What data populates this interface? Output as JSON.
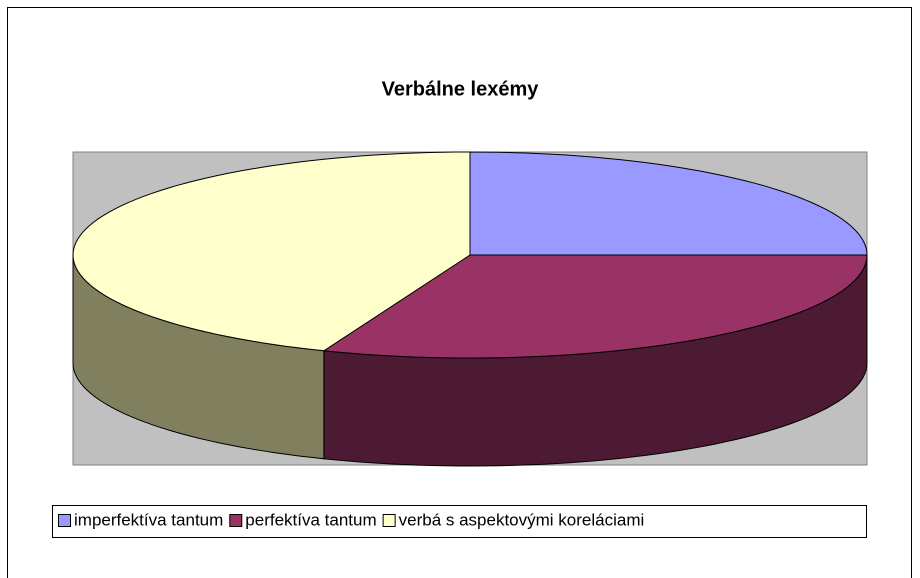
{
  "chart_data": {
    "type": "pie",
    "title": "Verbálne lexémy",
    "categories": [
      "imperfektíva tantum",
      "perfektíva tantum",
      "verbá s aspektovými koreláciami"
    ],
    "values": [
      25,
      31,
      44
    ],
    "colors": [
      "#9999ff",
      "#993366",
      "#ffffcc"
    ],
    "side_colors": [
      "#4d4d80",
      "#4d1a33",
      "#80805f"
    ],
    "legend": "bottom"
  }
}
